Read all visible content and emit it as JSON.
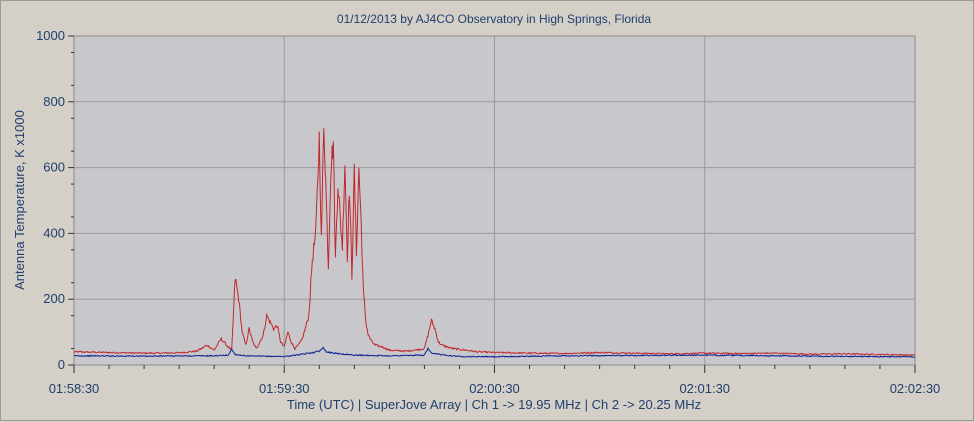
{
  "chart_data": {
    "type": "line",
    "title": "01/12/2013  by  AJ4CO Observatory  in  High Springs, Florida",
    "ylabel": "Antenna Temperature, K x1000",
    "xlabel": "Time (UTC)  |  SuperJove Array  |  Ch 1 -> 19.95 MHz  |  Ch 2 -> 20.25 MHz",
    "x_ticks": [
      "01:58:30",
      "01:59:30",
      "02:00:30",
      "02:01:30",
      "02:02:30"
    ],
    "x_range_seconds": [
      0,
      240
    ],
    "y_ticks": [
      0,
      200,
      400,
      600,
      800,
      1000
    ],
    "ylim": [
      0,
      1000
    ],
    "grid": true,
    "series": [
      {
        "color": "#c0282c",
        "points": [
          [
            0,
            40
          ],
          [
            10,
            38
          ],
          [
            20,
            36
          ],
          [
            30,
            37
          ],
          [
            35,
            42
          ],
          [
            38,
            60
          ],
          [
            40,
            45
          ],
          [
            42,
            80
          ],
          [
            44,
            55
          ],
          [
            45,
            45
          ],
          [
            46,
            265
          ],
          [
            47,
            200
          ],
          [
            48,
            100
          ],
          [
            49,
            60
          ],
          [
            50,
            110
          ],
          [
            51,
            70
          ],
          [
            52,
            50
          ],
          [
            54,
            90
          ],
          [
            55,
            150
          ],
          [
            56,
            130
          ],
          [
            57,
            110
          ],
          [
            58,
            120
          ],
          [
            59,
            70
          ],
          [
            60,
            55
          ],
          [
            61,
            100
          ],
          [
            62,
            70
          ],
          [
            63,
            50
          ],
          [
            64,
            60
          ],
          [
            65,
            75
          ],
          [
            66,
            110
          ],
          [
            67,
            150
          ],
          [
            68,
            320
          ],
          [
            69,
            400
          ],
          [
            70,
            690
          ],
          [
            70.6,
            380
          ],
          [
            71.3,
            740
          ],
          [
            72,
            500
          ],
          [
            72.6,
            300
          ],
          [
            73.3,
            600
          ],
          [
            74,
            680
          ],
          [
            74.6,
            320
          ],
          [
            75.3,
            560
          ],
          [
            76,
            440
          ],
          [
            76.6,
            360
          ],
          [
            77.3,
            620
          ],
          [
            78,
            330
          ],
          [
            78.6,
            540
          ],
          [
            79.3,
            270
          ],
          [
            80,
            590
          ],
          [
            80.6,
            340
          ],
          [
            81.3,
            600
          ],
          [
            82,
            420
          ],
          [
            82.6,
            220
          ],
          [
            83.3,
            130
          ],
          [
            84,
            90
          ],
          [
            85,
            70
          ],
          [
            86,
            60
          ],
          [
            88,
            55
          ],
          [
            90,
            45
          ],
          [
            95,
            42
          ],
          [
            100,
            50
          ],
          [
            101,
            90
          ],
          [
            102,
            135
          ],
          [
            103,
            110
          ],
          [
            104,
            70
          ],
          [
            105,
            60
          ],
          [
            108,
            50
          ],
          [
            112,
            45
          ],
          [
            115,
            40
          ],
          [
            120,
            38
          ],
          [
            130,
            36
          ],
          [
            140,
            35
          ],
          [
            150,
            38
          ],
          [
            160,
            36
          ],
          [
            170,
            34
          ],
          [
            180,
            36
          ],
          [
            190,
            35
          ],
          [
            200,
            36
          ],
          [
            210,
            33
          ],
          [
            220,
            34
          ],
          [
            230,
            32
          ],
          [
            240,
            30
          ]
        ]
      },
      {
        "color": "#0a1f8f",
        "points": [
          [
            0,
            28
          ],
          [
            20,
            27
          ],
          [
            40,
            28
          ],
          [
            44,
            30
          ],
          [
            45,
            48
          ],
          [
            46,
            32
          ],
          [
            50,
            27
          ],
          [
            60,
            26
          ],
          [
            65,
            32
          ],
          [
            70,
            42
          ],
          [
            71,
            55
          ],
          [
            72,
            40
          ],
          [
            75,
            35
          ],
          [
            80,
            30
          ],
          [
            90,
            28
          ],
          [
            100,
            30
          ],
          [
            101,
            50
          ],
          [
            102,
            35
          ],
          [
            110,
            26
          ],
          [
            120,
            25
          ],
          [
            140,
            28
          ],
          [
            160,
            29
          ],
          [
            180,
            30
          ],
          [
            200,
            28
          ],
          [
            220,
            26
          ],
          [
            240,
            25
          ]
        ]
      }
    ]
  }
}
